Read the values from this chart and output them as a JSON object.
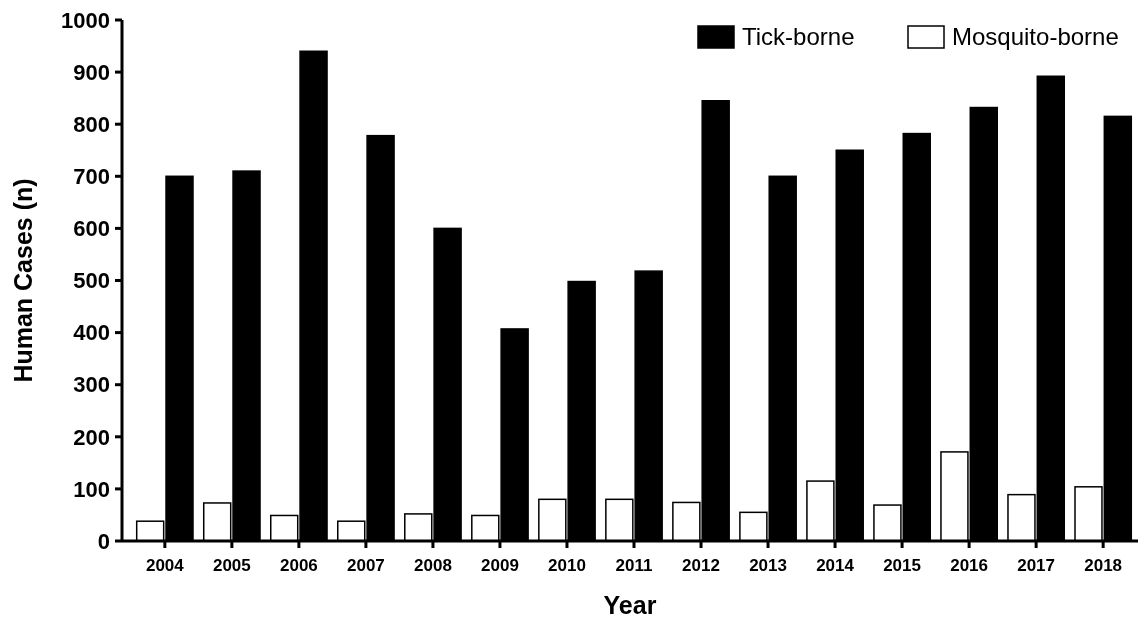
{
  "chart_data": {
    "type": "bar",
    "xlabel": "Year",
    "ylabel": "Human Cases (n)",
    "categories": [
      "2004",
      "2005",
      "2006",
      "2007",
      "2008",
      "2009",
      "2010",
      "2011",
      "2012",
      "2013",
      "2014",
      "2015",
      "2016",
      "2017",
      "2018"
    ],
    "series": [
      {
        "name": "Mosquito-borne",
        "color": "#ffffff",
        "values": [
          38,
          73,
          49,
          38,
          52,
          49,
          80,
          80,
          74,
          55,
          115,
          69,
          171,
          89,
          104
        ]
      },
      {
        "name": "Tick-borne",
        "color": "#000000",
        "values": [
          700,
          710,
          940,
          778,
          600,
          407,
          498,
          518,
          845,
          700,
          750,
          782,
          832,
          892,
          815
        ]
      }
    ],
    "ylim": [
      0,
      1000
    ],
    "yticks": [
      0,
      100,
      200,
      300,
      400,
      500,
      600,
      700,
      800,
      900,
      1000
    ],
    "grid": false,
    "legend": "top right"
  }
}
